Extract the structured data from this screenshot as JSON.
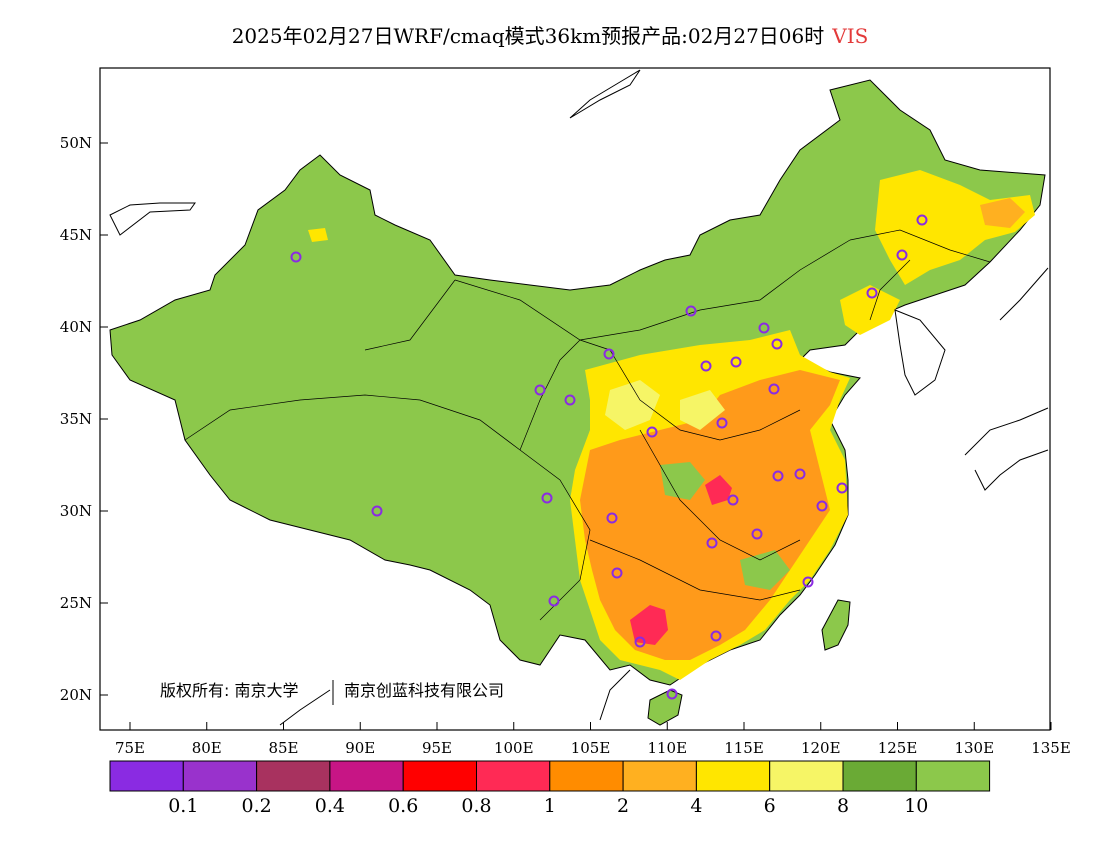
{
  "title": {
    "main": "2025年02月27日WRF/cmaq模式36km预报产品:02月27日06时",
    "variable": "VIS",
    "variable_color": "#e33a3a"
  },
  "map": {
    "lat_ticks": [
      "50N",
      "45N",
      "40N",
      "35N",
      "30N",
      "25N",
      "20N"
    ],
    "lat_values": [
      50,
      45,
      40,
      35,
      30,
      25,
      20
    ],
    "lon_ticks": [
      "75E",
      "80E",
      "85E",
      "90E",
      "95E",
      "100E",
      "105E",
      "110E",
      "115E",
      "120E",
      "125E",
      "130E",
      "135E"
    ],
    "lon_values": [
      75,
      80,
      85,
      90,
      95,
      100,
      105,
      110,
      115,
      120,
      125,
      130,
      135
    ],
    "copyright_left": "版权所有: 南京大学",
    "copyright_right": "南京创蓝科技有限公司"
  },
  "colorbar": {
    "colors": [
      "#8a2be2",
      "#9932cc",
      "#a8325f",
      "#c71585",
      "#ff0000",
      "#ff2a55",
      "#ff8c00",
      "#ffb020",
      "#ffe600",
      "#f6f566",
      "#6aaa35",
      "#8cc84b"
    ],
    "labels": [
      "0.1",
      "0.2",
      "0.4",
      "0.6",
      "0.8",
      "1",
      "2",
      "4",
      "6",
      "8",
      "10"
    ]
  },
  "legend_colors": {
    "land_good": "#8cc84b",
    "land_dark": "#6aaa35",
    "ocean": "#ffffff",
    "station_marker": "#8a2be2"
  }
}
